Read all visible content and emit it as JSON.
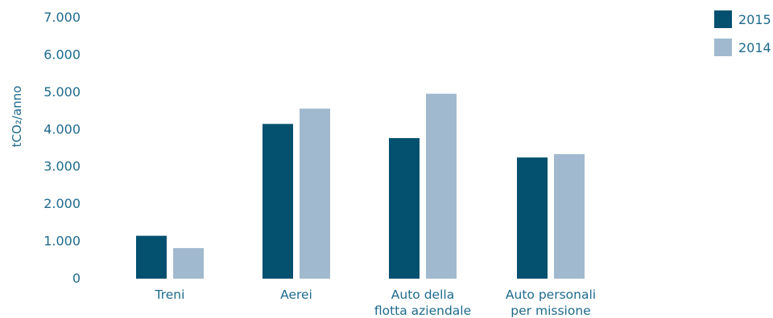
{
  "chart_data": {
    "type": "bar",
    "ylabel": "tCO₂/anno",
    "ylim": [
      0,
      7000
    ],
    "yticks": [
      "0",
      "1.000",
      "2.000",
      "3.000",
      "4.000",
      "5.000",
      "6.000",
      "7.000"
    ],
    "ytick_values": [
      0,
      1000,
      2000,
      3000,
      4000,
      5000,
      6000,
      7000
    ],
    "categories": [
      [
        "Treni"
      ],
      [
        "Aerei"
      ],
      [
        "Auto della",
        "flotta aziendale"
      ],
      [
        "Auto personali",
        "per missione"
      ]
    ],
    "series": [
      {
        "name": "2015",
        "color": "#03506f",
        "values": [
          1150,
          4150,
          3770,
          3250
        ]
      },
      {
        "name": "2014",
        "color": "#a1b9ce",
        "values": [
          820,
          4560,
          4960,
          3340
        ]
      }
    ],
    "legend_position": "top-right",
    "grid": false
  }
}
